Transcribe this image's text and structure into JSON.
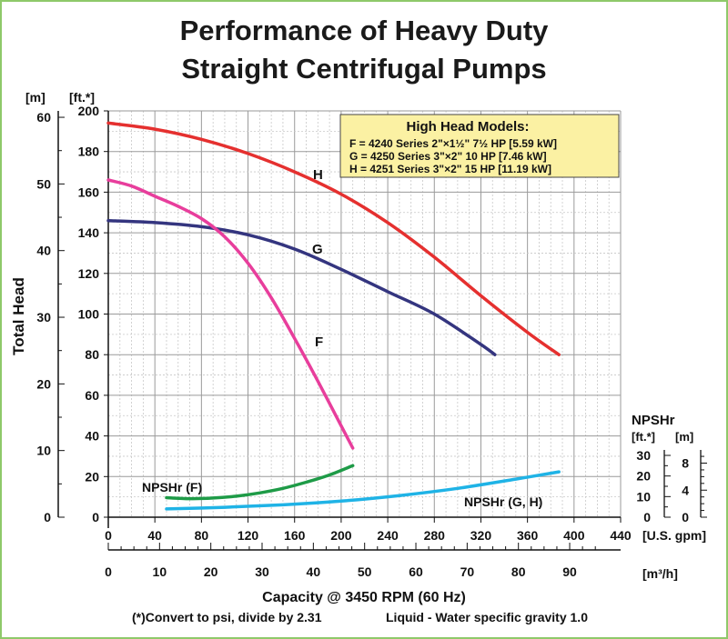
{
  "chart_data": {
    "type": "line",
    "title_line1": "Performance of Heavy Duty",
    "title_line2": "Straight Centrifugal Pumps",
    "ylabel": "Total Head",
    "y_unit_m": "[m]",
    "y_unit_ft": "[ft.*]",
    "x_unit_gpm": "[U.S. gpm]",
    "x_unit_m3h": "[m³/h]",
    "xlabel": "Capacity @ 3450 RPM (60 Hz)",
    "footnote": "(*)Convert to psi, divide by 2.31",
    "footnote2": "Liquid - Water specific gravity 1.0",
    "x_gpm_ticks": [
      "0",
      "40",
      "80",
      "120",
      "160",
      "200",
      "240",
      "280",
      "320",
      "360",
      "400",
      "440"
    ],
    "x_m3h_ticks": [
      "0",
      "10",
      "20",
      "30",
      "40",
      "50",
      "60",
      "70",
      "80",
      "90"
    ],
    "y_ft_ticks": [
      "0",
      "20",
      "40",
      "60",
      "80",
      "100",
      "120",
      "140",
      "160",
      "180",
      "200"
    ],
    "y_m_ticks": [
      "0",
      "10",
      "20",
      "30",
      "40",
      "50",
      "60"
    ],
    "npshr_title": "NPSHr",
    "npshr_unit_ft": "[ft.*]",
    "npshr_unit_m": "[m]",
    "npshr_ft_ticks": [
      "0",
      "10",
      "20",
      "30"
    ],
    "npshr_m_ticks": [
      "0",
      "4",
      "8"
    ],
    "xlim_gpm": [
      0,
      440
    ],
    "ylim_ft": [
      0,
      200
    ],
    "grid": true,
    "legend_box": {
      "title": "High Head Models:",
      "lines": [
        "F = 4240 Series 2\"×1½\" 7½ HP [5.59 kW]",
        "G = 4250 Series 3\"×2\" 10 HP [7.46 kW]",
        "H = 4251 Series 3\"×2\" 15 HP [11.19 kW]"
      ]
    },
    "series": [
      {
        "name": "H",
        "color": "#e5302f",
        "x": [
          0,
          40,
          80,
          120,
          160,
          200,
          240,
          280,
          320,
          360,
          387
        ],
        "y": [
          194,
          191,
          186,
          179,
          170,
          159,
          145,
          128,
          109,
          91,
          80
        ]
      },
      {
        "name": "G",
        "color": "#34357f",
        "x": [
          0,
          40,
          80,
          120,
          160,
          200,
          240,
          280,
          320,
          332
        ],
        "y": [
          146,
          145,
          143,
          139,
          132,
          122,
          111,
          100,
          85,
          80
        ]
      },
      {
        "name": "F",
        "color": "#e83e9c",
        "x": [
          0,
          20,
          40,
          60,
          80,
          100,
          120,
          140,
          160,
          180,
          200,
          210
        ],
        "y": [
          166,
          163,
          158,
          153,
          147,
          138,
          125,
          108,
          88,
          67,
          45,
          34
        ]
      },
      {
        "name": "NPSHr (F)",
        "color": "#1e9b47",
        "x": [
          50,
          70,
          90,
          110,
          130,
          150,
          170,
          190,
          210
        ],
        "y": [
          9.5,
          9.0,
          9.3,
          10.2,
          11.8,
          14.0,
          17.0,
          20.5,
          25.0
        ]
      },
      {
        "name": "NPSHr (G, H)",
        "color": "#1fb3e6",
        "x": [
          50,
          100,
          150,
          200,
          250,
          300,
          350,
          387
        ],
        "y": [
          4,
          4.8,
          6.0,
          7.8,
          10.5,
          14.0,
          18.5,
          22.0
        ]
      }
    ],
    "curve_labels": [
      "H",
      "G",
      "F",
      "NPSHr (F)",
      "NPSHr (G, H)"
    ]
  }
}
